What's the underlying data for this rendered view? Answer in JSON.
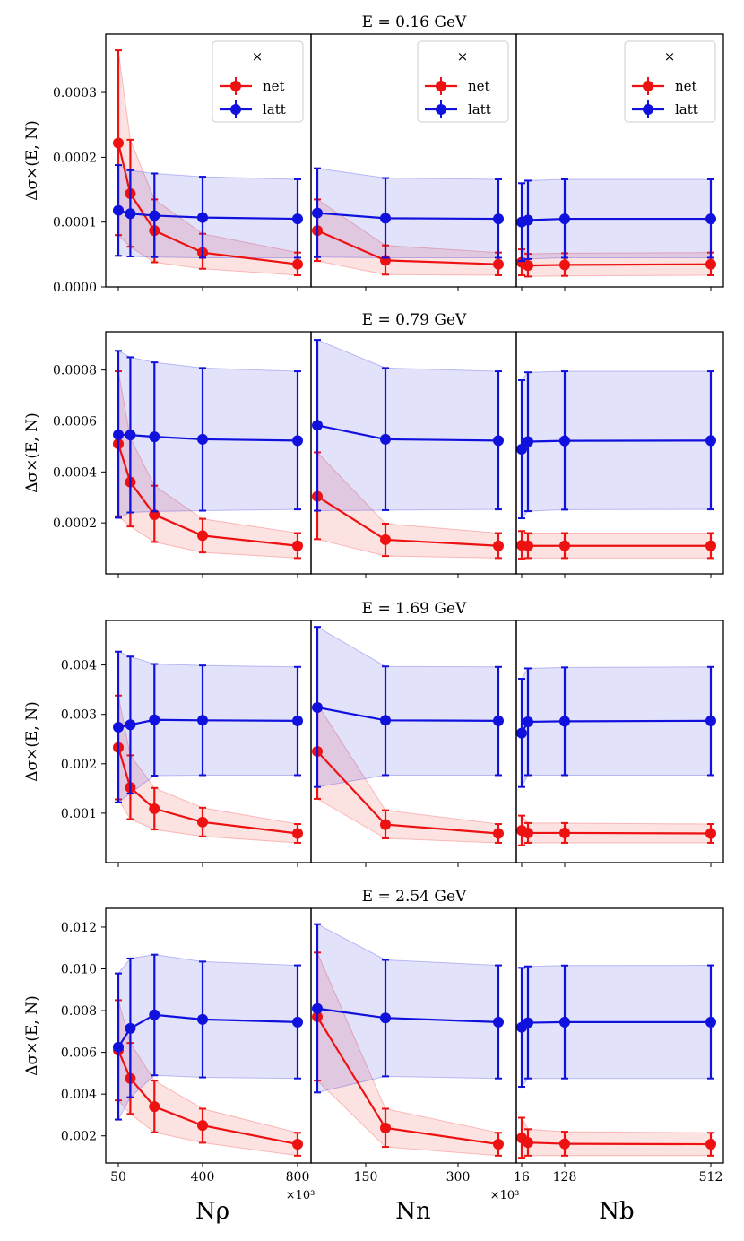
{
  "figure": {
    "ylabel": "Δσ×(E, N)",
    "legend": {
      "header": "×",
      "items": [
        {
          "label": "net"
        },
        {
          "label": "latt"
        }
      ]
    },
    "colors": {
      "net": "#ee1111",
      "latt": "#1111dd"
    },
    "xaxes": [
      {
        "label": "Nρ",
        "multiplier": "×10³",
        "ticks": [
          {
            "v": 50,
            "label": "50"
          },
          {
            "v": 400,
            "label": "400"
          },
          {
            "v": 800,
            "label": "800"
          }
        ]
      },
      {
        "label": "Nn",
        "multiplier": "×10³",
        "ticks": [
          {
            "v": 150,
            "label": "150"
          },
          {
            "v": 300,
            "label": "300"
          }
        ]
      },
      {
        "label": "Nb",
        "multiplier": "",
        "ticks": [
          {
            "v": 16,
            "label": "16"
          },
          {
            "v": 128,
            "label": "128"
          },
          {
            "v": 512,
            "label": "512"
          }
        ]
      }
    ]
  },
  "chart_data": [
    {
      "type": "line",
      "title": "E = 0.16 GeV",
      "ylim": [
        0,
        0.00039
      ],
      "yticks": [
        {
          "v": 0.0,
          "label": "0.0000"
        },
        {
          "v": 0.0001,
          "label": "0.0001"
        },
        {
          "v": 0.0002,
          "label": "0.0002"
        },
        {
          "v": 0.0003,
          "label": "0.0003"
        }
      ],
      "subplots": [
        {
          "x": [
            50,
            100,
            200,
            400,
            800
          ],
          "series": [
            {
              "name": "net",
              "y": [
                0.000222,
                0.000144,
                8.7e-05,
                5.3e-05,
                3.5e-05
              ],
              "lo": [
                8e-05,
                6.2e-05,
                3.8e-05,
                2.8e-05,
                1.8e-05
              ],
              "hi": [
                0.000365,
                0.000227,
                0.000135,
                8.2e-05,
                5.3e-05
              ]
            },
            {
              "name": "latt",
              "y": [
                0.000118,
                0.000113,
                0.00011,
                0.000107,
                0.000105
              ],
              "lo": [
                4.8e-05,
                4.7e-05,
                4.6e-05,
                4.5e-05,
                4.5e-05
              ],
              "hi": [
                0.000188,
                0.00018,
                0.000175,
                0.00017,
                0.000166
              ]
            }
          ]
        },
        {
          "x": [
            100,
            200,
            400
          ],
          "series": [
            {
              "name": "net",
              "y": [
                8.7e-05,
                4.1e-05,
                3.5e-05
              ],
              "lo": [
                4e-05,
                1.9e-05,
                1.8e-05
              ],
              "hi": [
                0.000135,
                6.4e-05,
                5.3e-05
              ]
            },
            {
              "name": "latt",
              "y": [
                0.000114,
                0.000106,
                0.000105
              ],
              "lo": [
                4.6e-05,
                4.5e-05,
                4.5e-05
              ],
              "hi": [
                0.000183,
                0.000168,
                0.000166
              ]
            }
          ]
        },
        {
          "x": [
            16,
            32,
            128,
            512
          ],
          "series": [
            {
              "name": "net",
              "y": [
                3.8e-05,
                3.3e-05,
                3.4e-05,
                3.5e-05
              ],
              "lo": [
                1.8e-05,
                1.6e-05,
                1.7e-05,
                1.8e-05
              ],
              "hi": [
                5.8e-05,
                5.1e-05,
                5.2e-05,
                5.3e-05
              ]
            },
            {
              "name": "latt",
              "y": [
                0.0001,
                0.000103,
                0.000105,
                0.000105
              ],
              "lo": [
                4e-05,
                4.3e-05,
                4.5e-05,
                4.5e-05
              ],
              "hi": [
                0.00016,
                0.000164,
                0.000166,
                0.000166
              ]
            }
          ]
        }
      ]
    },
    {
      "type": "line",
      "title": "E = 0.79 GeV",
      "ylim": [
        0,
        0.00095
      ],
      "yticks": [
        {
          "v": 0.0002,
          "label": "0.0002"
        },
        {
          "v": 0.0004,
          "label": "0.0004"
        },
        {
          "v": 0.0006,
          "label": "0.0006"
        },
        {
          "v": 0.0008,
          "label": "0.0008"
        }
      ],
      "subplots": [
        {
          "x": [
            50,
            100,
            200,
            400,
            800
          ],
          "series": [
            {
              "name": "net",
              "y": [
                0.00051,
                0.00036,
                0.000232,
                0.00015,
                0.00011
              ],
              "lo": [
                0.000226,
                0.000186,
                0.000125,
                8.4e-05,
                6.2e-05
              ],
              "hi": [
                0.000795,
                0.000533,
                0.000346,
                0.000216,
                0.00016
              ]
            },
            {
              "name": "latt",
              "y": [
                0.000546,
                0.000545,
                0.000538,
                0.000528,
                0.000523
              ],
              "lo": [
                0.00022,
                0.000241,
                0.000245,
                0.000248,
                0.000253
              ],
              "hi": [
                0.000875,
                0.00085,
                0.00083,
                0.000808,
                0.000795
              ]
            }
          ]
        },
        {
          "x": [
            100,
            200,
            400
          ],
          "series": [
            {
              "name": "net",
              "y": [
                0.000304,
                0.000134,
                0.00011
              ],
              "lo": [
                0.000136,
                7e-05,
                6.2e-05
              ],
              "hi": [
                0.000477,
                0.000197,
                0.00016
              ]
            },
            {
              "name": "latt",
              "y": [
                0.000583,
                0.000528,
                0.000523
              ],
              "lo": [
                0.000248,
                0.00025,
                0.000253
              ],
              "hi": [
                0.000918,
                0.000808,
                0.000795
              ]
            }
          ]
        },
        {
          "x": [
            16,
            32,
            128,
            512
          ],
          "series": [
            {
              "name": "net",
              "y": [
                0.000112,
                0.00011,
                0.00011,
                0.00011
              ],
              "lo": [
                6e-05,
                6.2e-05,
                6.2e-05,
                6.2e-05
              ],
              "hi": [
                0.000168,
                0.00016,
                0.00016,
                0.00016
              ]
            },
            {
              "name": "latt",
              "y": [
                0.000489,
                0.000519,
                0.000522,
                0.000523
              ],
              "lo": [
                0.000218,
                0.000246,
                0.000252,
                0.000253
              ],
              "hi": [
                0.00076,
                0.000791,
                0.000795,
                0.000795
              ]
            }
          ]
        }
      ]
    },
    {
      "type": "line",
      "title": "E = 1.69 GeV",
      "ylim": [
        0,
        0.0049
      ],
      "yticks": [
        {
          "v": 0.001,
          "label": "0.001"
        },
        {
          "v": 0.002,
          "label": "0.002"
        },
        {
          "v": 0.003,
          "label": "0.003"
        },
        {
          "v": 0.004,
          "label": "0.004"
        }
      ],
      "subplots": [
        {
          "x": [
            50,
            100,
            200,
            400,
            800
          ],
          "series": [
            {
              "name": "net",
              "y": [
                0.00233,
                0.00152,
                0.00109,
                0.00082,
                0.00059
              ],
              "lo": [
                0.00128,
                0.00088,
                0.00067,
                0.00053,
                0.0004
              ],
              "hi": [
                0.00338,
                0.00217,
                0.00151,
                0.00111,
                0.00078
              ]
            },
            {
              "name": "latt",
              "y": [
                0.00274,
                0.00279,
                0.00289,
                0.00288,
                0.00287
              ],
              "lo": [
                0.00122,
                0.0014,
                0.00176,
                0.00177,
                0.00177
              ],
              "hi": [
                0.00427,
                0.00417,
                0.00402,
                0.00399,
                0.00396
              ]
            }
          ]
        },
        {
          "x": [
            100,
            200,
            400
          ],
          "series": [
            {
              "name": "net",
              "y": [
                0.00225,
                0.00077,
                0.00059
              ],
              "lo": [
                0.00129,
                0.00049,
                0.0004
              ],
              "hi": [
                0.00321,
                0.00106,
                0.00078
              ]
            },
            {
              "name": "latt",
              "y": [
                0.00314,
                0.00288,
                0.00287
              ],
              "lo": [
                0.00153,
                0.00177,
                0.00177
              ],
              "hi": [
                0.00477,
                0.00397,
                0.00396
              ]
            }
          ]
        },
        {
          "x": [
            16,
            32,
            128,
            512
          ],
          "series": [
            {
              "name": "net",
              "y": [
                0.00065,
                0.0006,
                0.0006,
                0.00059
              ],
              "lo": [
                0.00035,
                0.0004,
                0.0004,
                0.0004
              ],
              "hi": [
                0.00095,
                0.0008,
                0.0008,
                0.00078
              ]
            },
            {
              "name": "latt",
              "y": [
                0.00262,
                0.00285,
                0.00286,
                0.00287
              ],
              "lo": [
                0.00153,
                0.00177,
                0.00177,
                0.00177
              ],
              "hi": [
                0.00372,
                0.00393,
                0.00395,
                0.00396
              ]
            }
          ]
        }
      ]
    },
    {
      "type": "line",
      "title": "E = 2.54 GeV",
      "ylim": [
        0.0007,
        0.0129
      ],
      "yticks": [
        {
          "v": 0.002,
          "label": "0.002"
        },
        {
          "v": 0.004,
          "label": "0.004"
        },
        {
          "v": 0.006,
          "label": "0.006"
        },
        {
          "v": 0.008,
          "label": "0.008"
        },
        {
          "v": 0.01,
          "label": "0.010"
        },
        {
          "v": 0.012,
          "label": "0.012"
        }
      ],
      "subplots": [
        {
          "x": [
            50,
            100,
            200,
            400,
            800
          ],
          "series": [
            {
              "name": "net",
              "y": [
                0.0061,
                0.00475,
                0.0034,
                0.0025,
                0.0016
              ],
              "lo": [
                0.0037,
                0.00305,
                0.00217,
                0.00167,
                0.00105
              ],
              "hi": [
                0.0085,
                0.00645,
                0.00465,
                0.0033,
                0.00215
              ]
            },
            {
              "name": "latt",
              "y": [
                0.00625,
                0.00715,
                0.0078,
                0.00758,
                0.00745
              ],
              "lo": [
                0.00278,
                0.00385,
                0.0049,
                0.0048,
                0.00475
              ],
              "hi": [
                0.00978,
                0.0105,
                0.01068,
                0.01035,
                0.01017
              ]
            }
          ]
        },
        {
          "x": [
            100,
            200,
            400
          ],
          "series": [
            {
              "name": "net",
              "y": [
                0.0077,
                0.00238,
                0.0016
              ],
              "lo": [
                0.00465,
                0.00147,
                0.00105
              ],
              "hi": [
                0.01078,
                0.0033,
                0.00215
              ]
            },
            {
              "name": "latt",
              "y": [
                0.0081,
                0.00765,
                0.00745
              ],
              "lo": [
                0.00408,
                0.00485,
                0.00475
              ],
              "hi": [
                0.01214,
                0.01043,
                0.01017
              ]
            }
          ]
        },
        {
          "x": [
            16,
            32,
            128,
            512
          ],
          "series": [
            {
              "name": "net",
              "y": [
                0.0019,
                0.00168,
                0.00162,
                0.0016
              ],
              "lo": [
                0.00095,
                0.00105,
                0.00105,
                0.00105
              ],
              "hi": [
                0.00287,
                0.00232,
                0.0022,
                0.00215
              ]
            },
            {
              "name": "latt",
              "y": [
                0.0072,
                0.00742,
                0.00745,
                0.00745
              ],
              "lo": [
                0.00435,
                0.00475,
                0.00475,
                0.00475
              ],
              "hi": [
                0.01005,
                0.01012,
                0.01016,
                0.01017
              ]
            }
          ]
        }
      ]
    }
  ]
}
